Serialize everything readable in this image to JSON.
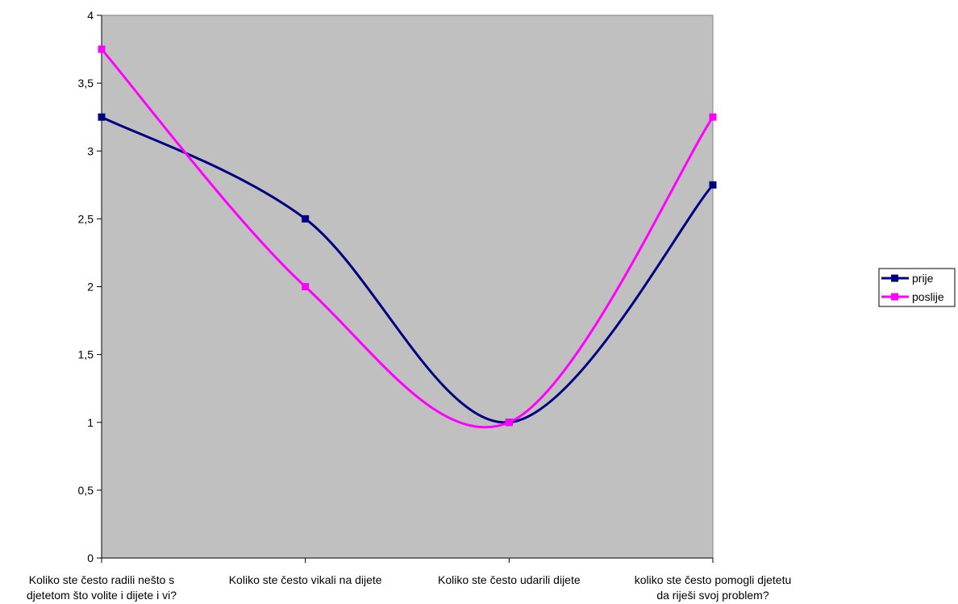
{
  "chart_data": {
    "type": "line",
    "categories": [
      [
        "Koliko ste često radili nešto s",
        "djetetom što volite i dijete i vi?"
      ],
      [
        "Koliko ste često vikali na dijete"
      ],
      [
        "Koliko ste često udarili dijete"
      ],
      [
        "koliko ste često pomogli djetetu",
        "da riješi svoj problem?"
      ]
    ],
    "series": [
      {
        "name": "prije",
        "values": [
          3.25,
          2.5,
          1,
          2.75
        ],
        "color": "#000080",
        "marker": "square"
      },
      {
        "name": "poslije",
        "values": [
          3.75,
          2,
          1,
          3.25
        ],
        "color": "#ff00ff",
        "marker": "square"
      }
    ],
    "ylim": [
      0,
      4
    ],
    "yticks": [
      "0",
      "0,5",
      "1",
      "1,5",
      "2",
      "2,5",
      "3",
      "3,5",
      "4"
    ],
    "smoothed": true,
    "plot_background": "#c0c0c0",
    "grid": false,
    "legend": "right",
    "title": "",
    "xlabel": "",
    "ylabel": ""
  }
}
